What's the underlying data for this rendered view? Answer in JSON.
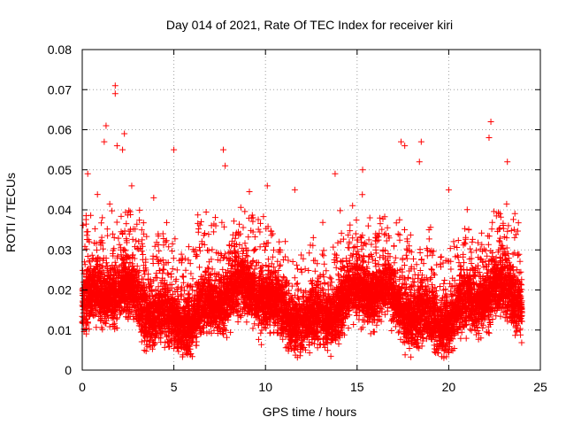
{
  "chart_data": {
    "type": "scatter",
    "title": "Day 014 of 2021, Rate Of TEC Index for receiver kiri",
    "xlabel": "GPS time / hours",
    "ylabel": "ROTI / TECUs",
    "xlim": [
      0,
      25
    ],
    "ylim": [
      0,
      0.08
    ],
    "x_ticks": [
      "0",
      "5",
      "10",
      "15",
      "20",
      "25"
    ],
    "y_ticks": [
      "0",
      "0.01",
      "0.02",
      "0.03",
      "0.04",
      "0.05",
      "0.06",
      "0.07",
      "0.08"
    ],
    "grid": true,
    "marker": "+",
    "color": "#ff0000",
    "series": [
      {
        "name": "ROTI",
        "note": "dense band of points between ~0.005 and ~0.035 TECUs across 0-24 h; representative outliers listed",
        "outliers": [
          {
            "x": 0.3,
            "y": 0.049
          },
          {
            "x": 1.3,
            "y": 0.061
          },
          {
            "x": 1.2,
            "y": 0.057
          },
          {
            "x": 1.8,
            "y": 0.071
          },
          {
            "x": 1.8,
            "y": 0.069
          },
          {
            "x": 1.9,
            "y": 0.056
          },
          {
            "x": 2.3,
            "y": 0.059
          },
          {
            "x": 2.2,
            "y": 0.055
          },
          {
            "x": 2.7,
            "y": 0.046
          },
          {
            "x": 3.9,
            "y": 0.043
          },
          {
            "x": 5.0,
            "y": 0.055
          },
          {
            "x": 7.7,
            "y": 0.055
          },
          {
            "x": 7.8,
            "y": 0.051
          },
          {
            "x": 10.1,
            "y": 0.046
          },
          {
            "x": 11.6,
            "y": 0.045
          },
          {
            "x": 13.8,
            "y": 0.049
          },
          {
            "x": 15.3,
            "y": 0.05
          },
          {
            "x": 17.4,
            "y": 0.057
          },
          {
            "x": 17.6,
            "y": 0.056
          },
          {
            "x": 18.5,
            "y": 0.057
          },
          {
            "x": 18.4,
            "y": 0.052
          },
          {
            "x": 20.0,
            "y": 0.045
          },
          {
            "x": 22.3,
            "y": 0.062
          },
          {
            "x": 22.2,
            "y": 0.058
          },
          {
            "x": 23.2,
            "y": 0.052
          }
        ]
      }
    ]
  }
}
